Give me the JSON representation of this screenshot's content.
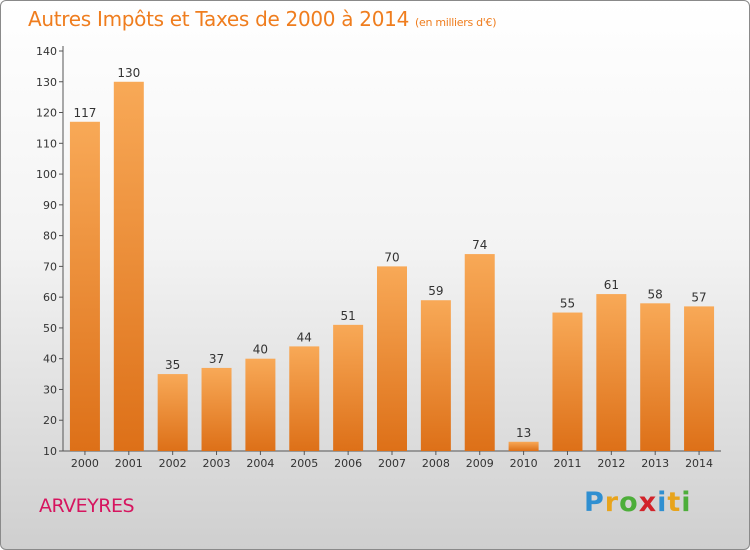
{
  "title": "Autres Impôts et Taxes de 2000 à 2014",
  "unit": "(en milliers d'€)",
  "commune": "ARVEYRES",
  "logo": {
    "letters": [
      "P",
      "r",
      "o",
      "x",
      "i",
      "t",
      "i"
    ],
    "colors": [
      "#2f8fd1",
      "#e8a41c",
      "#4dae3a",
      "#d2232a",
      "#2f8fd1",
      "#e8a41c",
      "#4dae3a"
    ]
  },
  "colors": {
    "bar_light": "#f8a957",
    "bar_dark": "#dd7018",
    "title": "#ef7d1e",
    "commune": "#d6155f"
  },
  "chart_data": {
    "type": "bar",
    "categories": [
      "2000",
      "2001",
      "2002",
      "2003",
      "2004",
      "2005",
      "2006",
      "2007",
      "2008",
      "2009",
      "2010",
      "2011",
      "2012",
      "2013",
      "2014"
    ],
    "values": [
      117,
      130,
      35,
      37,
      40,
      44,
      51,
      70,
      59,
      74,
      13,
      55,
      61,
      58,
      57
    ],
    "ylim": [
      10,
      140
    ],
    "yticks": [
      10,
      20,
      30,
      40,
      50,
      60,
      70,
      80,
      90,
      100,
      110,
      120,
      130,
      140
    ],
    "grid": false,
    "legend": "none"
  }
}
